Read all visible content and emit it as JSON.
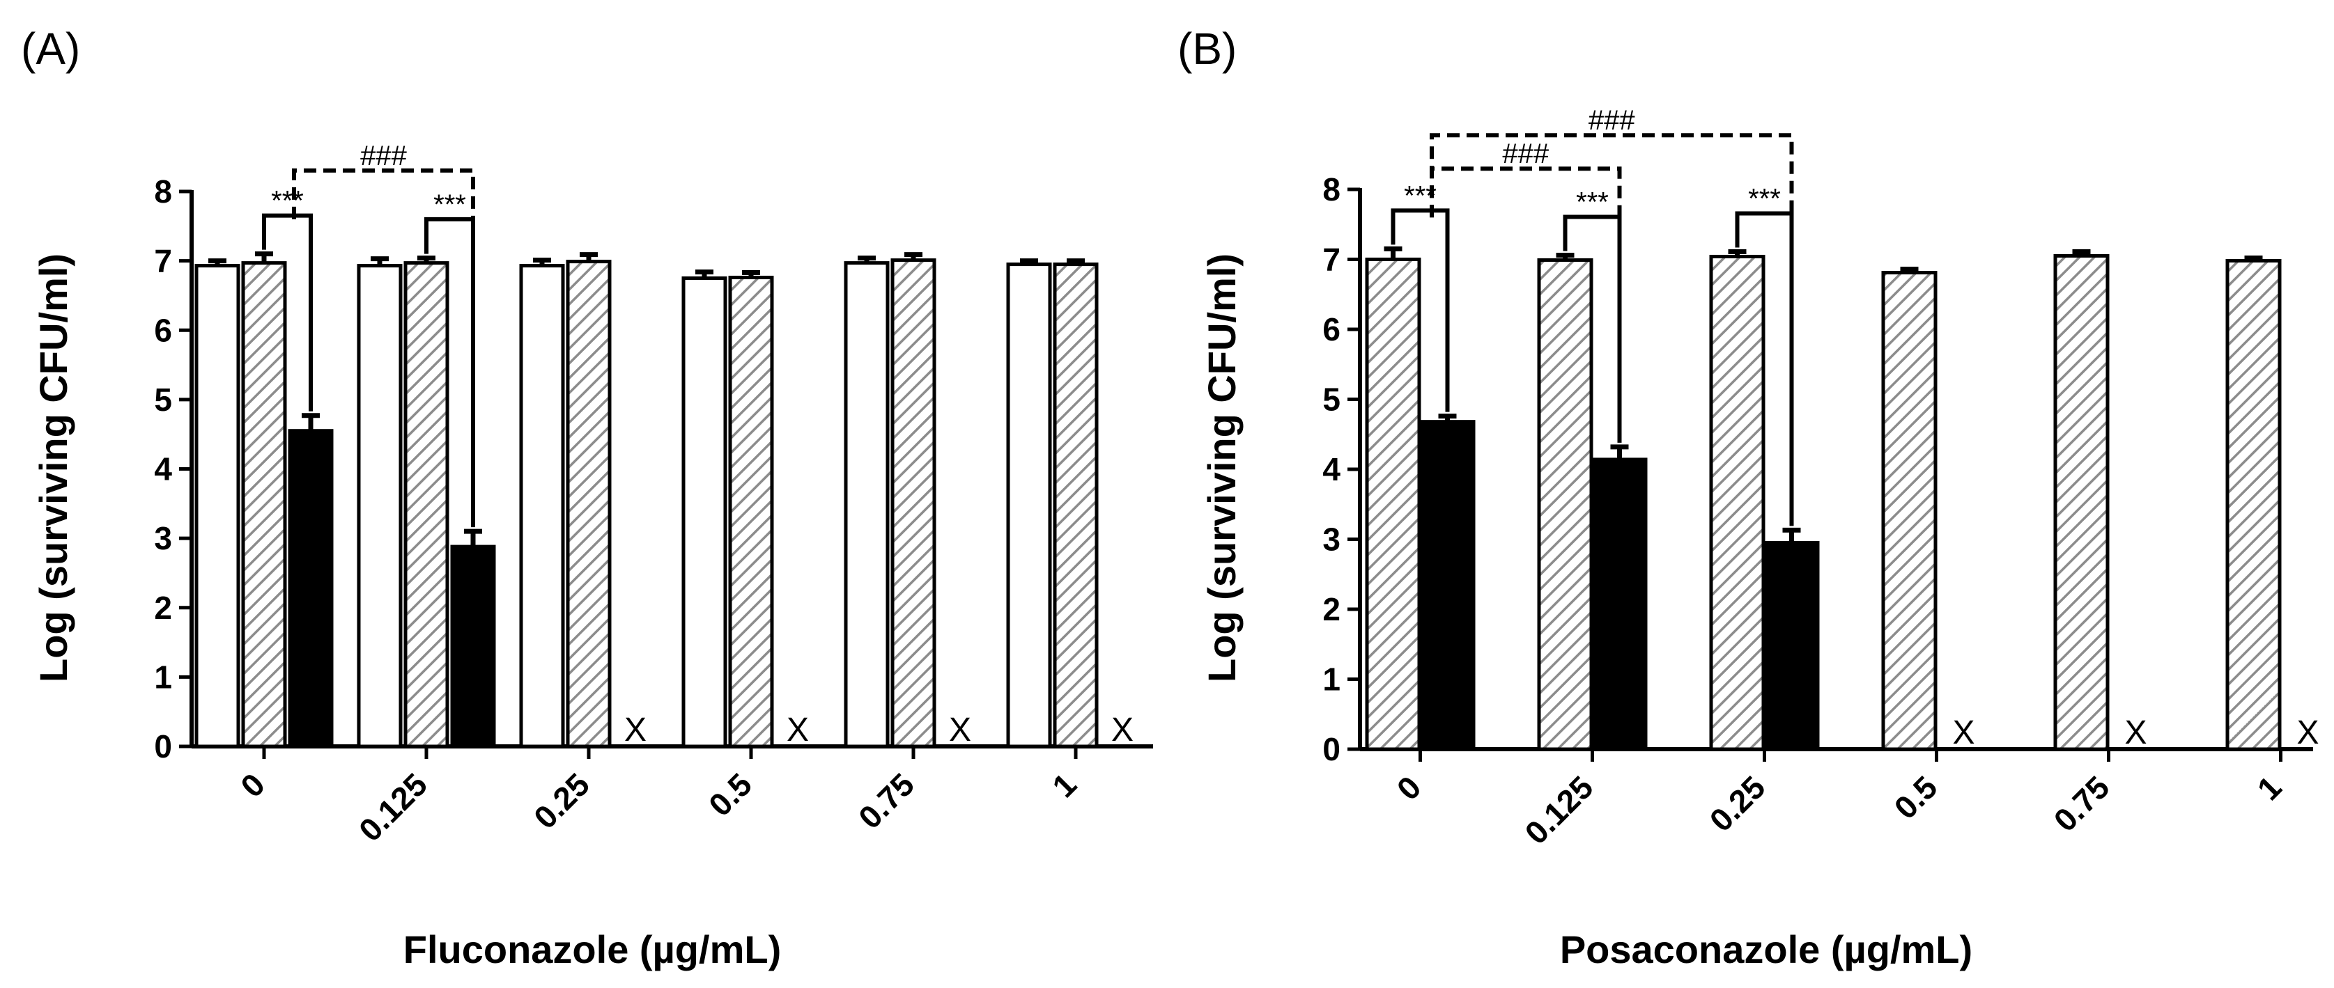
{
  "colors": {
    "ink": "#000000",
    "paper": "#ffffff",
    "hatch": "#8c8c8c"
  },
  "chart_data": [
    {
      "type": "bar",
      "panel_label": "(A)",
      "xlabel": "Fluconazole (µg/mL)",
      "ylabel": "Log (surviving CFU/ml)",
      "ylim": [
        0,
        8
      ],
      "yticks": [
        "0",
        "1",
        "2",
        "3",
        "4",
        "5",
        "6",
        "7",
        "8"
      ],
      "categories": [
        "0",
        "0.125",
        "0.25",
        "0.5",
        "0.75",
        "1"
      ],
      "series": [
        {
          "name": "open",
          "fill": "white",
          "values": [
            6.93,
            6.93,
            6.93,
            6.75,
            6.97,
            6.95
          ],
          "errors": [
            0.07,
            0.1,
            0.08,
            0.09,
            0.07,
            0.05
          ]
        },
        {
          "name": "hatched",
          "fill": "hatch",
          "values": [
            6.97,
            6.97,
            6.99,
            6.76,
            7.01,
            6.95
          ],
          "errors": [
            0.13,
            0.07,
            0.1,
            0.07,
            0.08,
            0.05
          ]
        },
        {
          "name": "solid",
          "fill": "black",
          "values": [
            4.55,
            2.88,
            null,
            null,
            null,
            null
          ],
          "errors": [
            0.22,
            0.22,
            null,
            null,
            null,
            null
          ]
        }
      ],
      "no_growth_mark": "X",
      "significance": [
        {
          "type": "pair",
          "category": 0,
          "from": 1,
          "to": 2,
          "label": "***"
        },
        {
          "type": "pair",
          "category": 1,
          "from": 1,
          "to": 2,
          "label": "***"
        },
        {
          "type": "between",
          "from_category": 0,
          "to_category": 1,
          "series": 2,
          "label": "###",
          "dashed": true
        }
      ]
    },
    {
      "type": "bar",
      "panel_label": "(B)",
      "xlabel": "Posaconazole (µg/mL)",
      "ylabel": "Log (surviving CFU/ml)",
      "ylim": [
        0,
        8
      ],
      "yticks": [
        "0",
        "1",
        "2",
        "3",
        "4",
        "5",
        "6",
        "7",
        "8"
      ],
      "categories": [
        "0",
        "0.125",
        "0.25",
        "0.5",
        "0.75",
        "1"
      ],
      "series": [
        {
          "name": "hatched",
          "fill": "hatch",
          "values": [
            7.0,
            6.99,
            7.04,
            6.81,
            7.05,
            6.98
          ],
          "errors": [
            0.15,
            0.07,
            0.07,
            0.05,
            0.06,
            0.04
          ]
        },
        {
          "name": "solid",
          "fill": "black",
          "values": [
            4.68,
            4.14,
            2.95,
            null,
            null,
            null
          ],
          "errors": [
            0.08,
            0.18,
            0.18,
            null,
            null,
            null
          ]
        }
      ],
      "no_growth_mark": "X",
      "significance": [
        {
          "type": "pair",
          "category": 0,
          "from": 0,
          "to": 1,
          "label": "***"
        },
        {
          "type": "pair",
          "category": 1,
          "from": 0,
          "to": 1,
          "label": "***"
        },
        {
          "type": "pair",
          "category": 2,
          "from": 0,
          "to": 1,
          "label": "***"
        },
        {
          "type": "between",
          "from_category": 0,
          "to_category": 1,
          "series": 1,
          "label": "###",
          "dashed": true
        },
        {
          "type": "between",
          "from_category": 0,
          "to_category": 2,
          "series": 1,
          "label": "###",
          "dashed": true
        }
      ]
    }
  ]
}
